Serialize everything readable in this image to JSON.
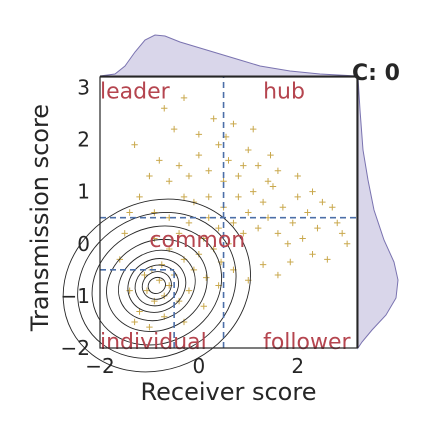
{
  "chart_data": {
    "type": "scatter",
    "title": "",
    "corner_label": "C: 0",
    "xlabel": "Receiver score",
    "ylabel": "Transmission score",
    "xlim": [
      -2,
      3.2
    ],
    "ylim": [
      -2,
      3.2
    ],
    "x_ticks": [
      "−2",
      "0",
      "2"
    ],
    "y_ticks": [
      "−2",
      "−1",
      "0",
      "1",
      "2",
      "3"
    ],
    "x_tick_values": [
      -2,
      0,
      2
    ],
    "y_tick_values": [
      -2,
      -1,
      0,
      1,
      2,
      3
    ],
    "grid": false,
    "threshold_lines": [
      {
        "axis": "x",
        "value": 0.5,
        "ymax": 3.2
      },
      {
        "axis": "y",
        "value": 0.5,
        "xmax": 3.2
      },
      {
        "axis": "x",
        "value": -0.5,
        "ymax": -0.5
      },
      {
        "axis": "y",
        "value": -0.5,
        "xmax": -0.5
      }
    ],
    "region_labels": [
      {
        "text": "leader",
        "x": -2.0,
        "y": 2.9
      },
      {
        "text": "hub",
        "x": 1.3,
        "y": 2.9
      },
      {
        "text": "common",
        "x": -1.0,
        "y": 0.05
      },
      {
        "text": "individual",
        "x": -2.0,
        "y": -1.9
      },
      {
        "text": "follower",
        "x": 1.3,
        "y": -1.9
      }
    ],
    "kde_center": [
      -0.85,
      -0.8
    ],
    "kde_levels": [
      {
        "rx": 0.18,
        "ry": 0.15
      },
      {
        "rx": 0.3,
        "ry": 0.26
      },
      {
        "rx": 0.45,
        "ry": 0.38
      },
      {
        "rx": 0.6,
        "ry": 0.5
      },
      {
        "rx": 0.8,
        "ry": 0.65
      },
      {
        "rx": 1.05,
        "ry": 0.85
      },
      {
        "rx": 1.35,
        "ry": 1.1
      },
      {
        "rx": 1.65,
        "ry": 1.35
      },
      {
        "rx": 1.95,
        "ry": 1.6
      }
    ],
    "points": [
      [
        -1.2,
        -1.3
      ],
      [
        -1.05,
        -0.9
      ],
      [
        -0.9,
        -1.1
      ],
      [
        -0.8,
        -0.7
      ],
      [
        -0.95,
        -0.5
      ],
      [
        -0.7,
        -1.0
      ],
      [
        -0.6,
        -0.8
      ],
      [
        -1.1,
        -0.6
      ],
      [
        -0.75,
        -0.4
      ],
      [
        -0.5,
        -0.6
      ],
      [
        -0.4,
        -1.1
      ],
      [
        -0.3,
        -0.3
      ],
      [
        -0.2,
        -0.9
      ],
      [
        -0.1,
        -0.5
      ],
      [
        0.0,
        -0.2
      ],
      [
        -0.6,
        -0.1
      ],
      [
        -0.9,
        0.1
      ],
      [
        -0.4,
        0.2
      ],
      [
        -0.2,
        0.4
      ],
      [
        0.1,
        0.1
      ],
      [
        0.2,
        0.5
      ],
      [
        0.3,
        -0.1
      ],
      [
        0.4,
        0.3
      ],
      [
        0.5,
        0.7
      ],
      [
        0.6,
        0.0
      ],
      [
        0.7,
        0.4
      ],
      [
        0.8,
        0.9
      ],
      [
        0.9,
        0.2
      ],
      [
        1.0,
        0.6
      ],
      [
        1.1,
        1.0
      ],
      [
        1.2,
        0.3
      ],
      [
        1.3,
        0.8
      ],
      [
        1.4,
        0.5
      ],
      [
        1.5,
        1.1
      ],
      [
        1.6,
        0.2
      ],
      [
        1.7,
        0.7
      ],
      [
        1.8,
        0.0
      ],
      [
        1.9,
        0.4
      ],
      [
        2.0,
        0.9
      ],
      [
        2.1,
        0.1
      ],
      [
        2.2,
        0.6
      ],
      [
        2.3,
        -0.2
      ],
      [
        2.4,
        0.3
      ],
      [
        2.5,
        0.8
      ],
      [
        2.6,
        -0.3
      ],
      [
        2.8,
        0.4
      ],
      [
        3.0,
        0.0
      ],
      [
        -0.6,
        1.2
      ],
      [
        -0.4,
        1.5
      ],
      [
        -0.2,
        1.3
      ],
      [
        0.0,
        1.7
      ],
      [
        0.2,
        1.4
      ],
      [
        0.4,
        1.9
      ],
      [
        0.6,
        1.6
      ],
      [
        0.8,
        1.3
      ],
      [
        1.0,
        1.8
      ],
      [
        1.2,
        1.5
      ],
      [
        1.4,
        1.2
      ],
      [
        -0.8,
        1.6
      ],
      [
        -1.0,
        1.3
      ],
      [
        -1.2,
        0.9
      ],
      [
        -1.4,
        0.6
      ],
      [
        -1.3,
        1.9
      ],
      [
        -0.5,
        2.2
      ],
      [
        0.0,
        2.1
      ],
      [
        0.3,
        2.4
      ],
      [
        -0.7,
        2.6
      ],
      [
        -0.3,
        2.8
      ],
      [
        0.7,
        2.3
      ],
      [
        1.1,
        2.2
      ],
      [
        -1.5,
        0.2
      ],
      [
        -1.6,
        -0.3
      ],
      [
        -1.4,
        -0.9
      ],
      [
        -1.3,
        -1.5
      ],
      [
        -1.0,
        -1.6
      ],
      [
        -0.7,
        -1.4
      ],
      [
        -0.3,
        -1.5
      ],
      [
        0.1,
        -1.2
      ],
      [
        0.4,
        -0.8
      ],
      [
        0.7,
        -0.5
      ],
      [
        1.0,
        -0.7
      ],
      [
        1.3,
        -0.4
      ],
      [
        1.6,
        -0.6
      ],
      [
        0.2,
        0.9
      ],
      [
        -0.1,
        0.8
      ],
      [
        0.5,
        1.2
      ],
      [
        0.9,
        1.5
      ],
      [
        1.6,
        1.4
      ],
      [
        2.0,
        1.3
      ],
      [
        2.3,
        1.0
      ],
      [
        -0.9,
        0.6
      ],
      [
        -0.6,
        0.5
      ],
      [
        -0.3,
        0.9
      ],
      [
        0.15,
        -0.65
      ],
      [
        0.45,
        -0.35
      ],
      [
        1.85,
        -0.35
      ],
      [
        2.7,
        0.7
      ],
      [
        2.9,
        0.2
      ],
      [
        1.45,
        1.7
      ],
      [
        0.55,
        2.05
      ]
    ],
    "colors": {
      "points": "#c9a84c",
      "contour": "#262626",
      "threshold": "#4c6fa8",
      "region_label": "#b5454f",
      "marginal_fill": "#d9d6ea",
      "marginal_line": "#7a73b0",
      "frame": "#262626"
    }
  }
}
